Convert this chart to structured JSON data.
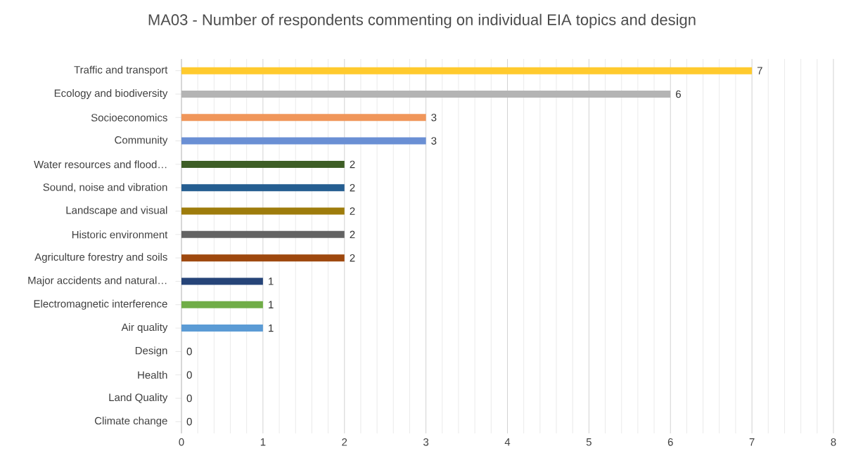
{
  "chart_data": {
    "type": "bar",
    "orientation": "horizontal",
    "title": "MA03 - Number of respondents commenting on individual EIA topics and design",
    "categories": [
      "Traffic and transport",
      "Ecology and biodiversity",
      "Socioeconomics",
      "Community",
      "Water resources and flood…",
      "Sound, noise and vibration",
      "Landscape and visual",
      "Historic environment",
      "Agriculture forestry and soils",
      "Major accidents and natural…",
      "Electromagnetic interference",
      "Air quality",
      "Design",
      "Health",
      "Land Quality",
      "Climate change"
    ],
    "values": [
      7,
      6,
      3,
      3,
      2,
      2,
      2,
      2,
      2,
      1,
      1,
      1,
      0,
      0,
      0,
      0
    ],
    "colors": [
      "#ffca2e",
      "#b4b4b4",
      "#f0965a",
      "#6a8fd4",
      "#3e5e26",
      "#255e91",
      "#9e7c0c",
      "#636363",
      "#9e480e",
      "#264478",
      "#70ad47",
      "#5b9bd5",
      "#997300",
      "#43682b",
      "#698ed0",
      "#f1975a"
    ],
    "xlim": [
      0,
      8
    ],
    "xticks": [
      0,
      1,
      2,
      3,
      4,
      5,
      6,
      7,
      8
    ],
    "grid": "x",
    "data_labels": true
  }
}
